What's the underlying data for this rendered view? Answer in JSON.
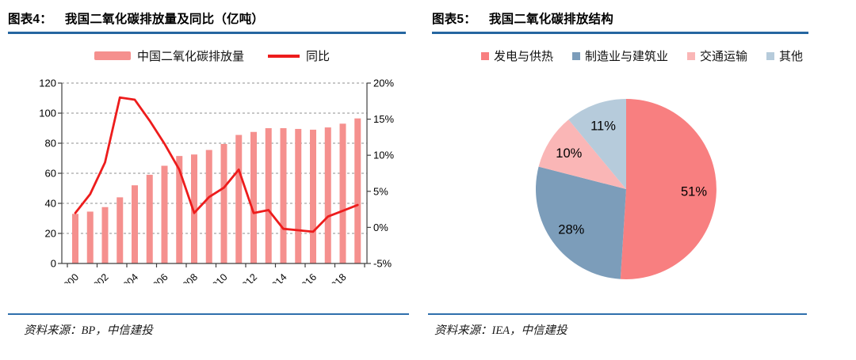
{
  "accent": {
    "header_rule_color": "#2566A0",
    "source_rule_color": "#2E6FAC"
  },
  "chart_data": [
    {
      "figure_label": "图表4：",
      "title": "我国二氧化碳排放量及同比（亿吨）",
      "type": "bar+line",
      "categories": [
        "2000",
        "2001",
        "2002",
        "2003",
        "2004",
        "2005",
        "2006",
        "2007",
        "2008",
        "2009",
        "2010",
        "2011",
        "2012",
        "2013",
        "2014",
        "2015",
        "2016",
        "2017",
        "2018",
        "2019"
      ],
      "series": [
        {
          "name": "中国二氧化碳排放量",
          "kind": "bar",
          "axis": "left",
          "color": "#F5908E",
          "values": [
            33,
            34.5,
            37.5,
            44,
            52,
            59,
            65,
            71.5,
            72.5,
            75.5,
            79.5,
            85.5,
            87.5,
            90,
            90,
            89.5,
            89,
            90.5,
            93,
            96.5
          ]
        },
        {
          "name": "同比",
          "kind": "line",
          "axis": "right",
          "color": "#ED1C1C",
          "values": [
            2,
            4.6,
            9,
            18,
            17.7,
            14.8,
            11.6,
            8,
            2,
            4.2,
            5.5,
            8,
            2,
            2.4,
            -0.2,
            -0.4,
            -0.6,
            1.5,
            2.3,
            3.1
          ]
        }
      ],
      "left_axis": {
        "min": 0,
        "max": 120,
        "step": 20,
        "tick_labels": [
          "0",
          "20",
          "40",
          "60",
          "80",
          "100",
          "120"
        ]
      },
      "right_axis": {
        "min": -5,
        "max": 20,
        "step": 5,
        "tick_labels": [
          "-5%",
          "0%",
          "5%",
          "10%",
          "15%",
          "20%"
        ]
      },
      "x_axis": {
        "tick_label_years": [
          "2000",
          "2002",
          "2004",
          "2006",
          "2008",
          "2010",
          "2012",
          "2014",
          "2016",
          "2018"
        ],
        "rotation_deg": -45
      },
      "grid": "horizontal-dashed",
      "legend_position": "top",
      "source": "资料来源：BP，中信建投"
    },
    {
      "figure_label": "图表5：",
      "title": "我国二氧化碳排放结构",
      "type": "pie",
      "start_angle_deg": 0,
      "direction": "clockwise",
      "slices": [
        {
          "label": "发电与供热",
          "value_pct": 51,
          "data_label": "51%",
          "color": "#F87F80"
        },
        {
          "label": "制造业与建筑业",
          "value_pct": 28,
          "data_label": "28%",
          "color": "#7C9DBA"
        },
        {
          "label": "交通运输",
          "value_pct": 10,
          "data_label": "10%",
          "color": "#FAB6B6"
        },
        {
          "label": "其他",
          "value_pct": 11,
          "data_label": "11%",
          "color": "#B6CBDB"
        }
      ],
      "legend_position": "top",
      "source": "资料来源：IEA，中信建投"
    }
  ]
}
